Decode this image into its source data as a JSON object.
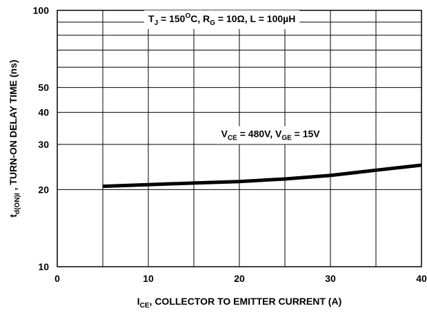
{
  "chart_data": {
    "type": "line",
    "title": "",
    "xlabel": {
      "main": "I",
      "sub": "CE",
      "rest": ", COLLECTOR TO EMITTER CURRENT (A)"
    },
    "ylabel": {
      "main": "t",
      "sub": "d(ON)I",
      "rest": " , TURN-ON DELAY TIME (ns)"
    },
    "xlim": [
      0,
      40
    ],
    "ylim": [
      10,
      100
    ],
    "yscale": "log",
    "grid": true,
    "x_ticks": [
      0,
      10,
      20,
      30,
      40
    ],
    "x_tick_labels": [
      "0",
      "10",
      "20",
      "30",
      "40"
    ],
    "y_ticks": [
      10,
      20,
      30,
      40,
      50,
      100
    ],
    "y_tick_labels": [
      "10",
      "20",
      "30",
      "40",
      "50",
      "100"
    ],
    "y_minor_gridlines": [
      60,
      70,
      80,
      90
    ],
    "series": [
      {
        "x": [
          5,
          10,
          15,
          20,
          25,
          30,
          35,
          40
        ],
        "y": [
          20.6,
          20.9,
          21.2,
          21.5,
          22.0,
          22.7,
          23.8,
          24.9
        ]
      }
    ],
    "annotations": [
      {
        "segments": [
          {
            "text": "T",
            "sub": "J"
          },
          {
            "text": " = 150",
            "sup": "O"
          },
          {
            "text": "C, R",
            "sub": "G"
          },
          {
            "text": " = 10Ω, L = 100µH"
          }
        ],
        "x": 10,
        "y": 90
      },
      {
        "segments": [
          {
            "text": "V",
            "sub": "CE"
          },
          {
            "text": " = 480V, V",
            "sub": "GE"
          },
          {
            "text": " = 15V"
          }
        ],
        "x": 18,
        "y": 32
      }
    ]
  }
}
